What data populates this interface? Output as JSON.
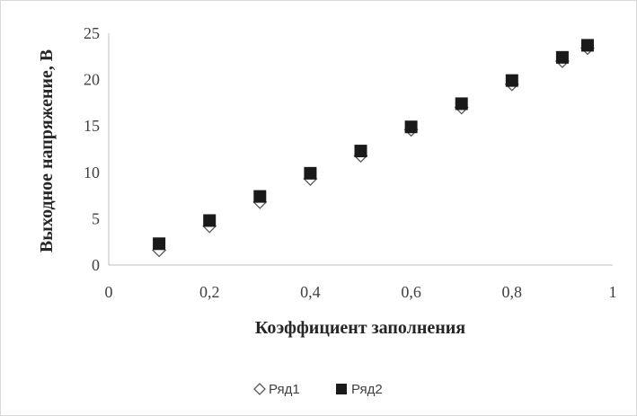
{
  "chart_data": {
    "type": "scatter",
    "title": "",
    "xlabel": "Коэффициент заполнения",
    "ylabel": "Выходное напряжение, В",
    "xlim": [
      0,
      1
    ],
    "ylim": [
      0,
      25
    ],
    "x_ticks": [
      "0",
      "0,2",
      "0,4",
      "0,6",
      "0,8",
      "1"
    ],
    "x_tick_values": [
      0,
      0.2,
      0.4,
      0.6,
      0.8,
      1
    ],
    "y_ticks": [
      "0",
      "5",
      "10",
      "15",
      "20",
      "25"
    ],
    "y_tick_values": [
      0,
      5,
      10,
      15,
      20,
      25
    ],
    "grid": false,
    "legend_position": "bottom",
    "series": [
      {
        "name": "Ряд1",
        "marker": "diamond-open",
        "color": "#595959",
        "x": [
          0.1,
          0.2,
          0.3,
          0.4,
          0.5,
          0.6,
          0.7,
          0.8,
          0.9,
          0.95
        ],
        "y": [
          1.6,
          4.2,
          6.8,
          9.3,
          11.8,
          14.6,
          17.0,
          19.5,
          22.0,
          23.4
        ]
      },
      {
        "name": "Ряд2",
        "marker": "square-filled",
        "color": "#1a1a1a",
        "x": [
          0.1,
          0.2,
          0.3,
          0.4,
          0.5,
          0.6,
          0.7,
          0.8,
          0.9,
          0.95
        ],
        "y": [
          2.3,
          4.8,
          7.4,
          9.9,
          12.3,
          14.9,
          17.4,
          19.9,
          22.4,
          23.7
        ]
      }
    ]
  }
}
